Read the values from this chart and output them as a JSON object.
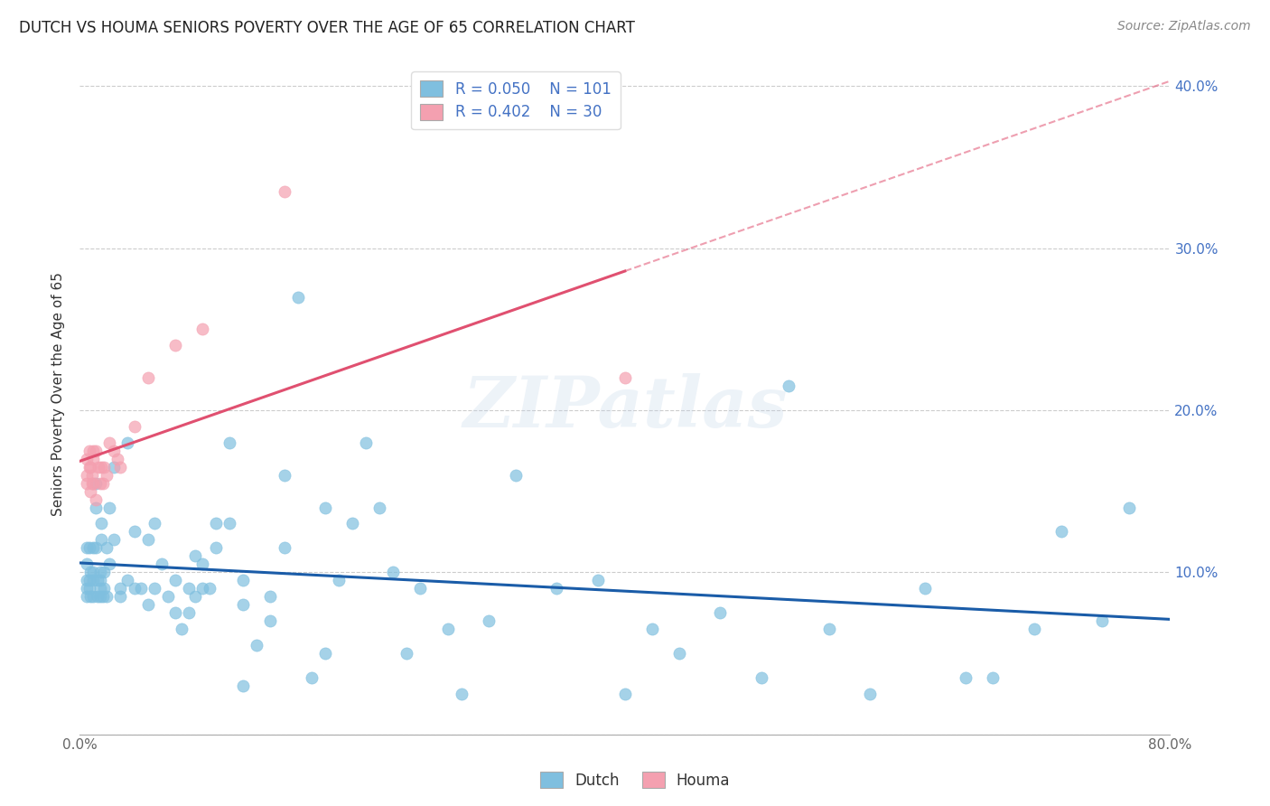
{
  "title": "DUTCH VS HOUMA SENIORS POVERTY OVER THE AGE OF 65 CORRELATION CHART",
  "source": "Source: ZipAtlas.com",
  "ylabel": "Seniors Poverty Over the Age of 65",
  "xlim": [
    0.0,
    0.8
  ],
  "ylim": [
    0.0,
    0.42
  ],
  "xticks": [
    0.0,
    0.1,
    0.2,
    0.3,
    0.4,
    0.5,
    0.6,
    0.7,
    0.8
  ],
  "xticklabels": [
    "0.0%",
    "",
    "",
    "",
    "",
    "",
    "",
    "",
    "80.0%"
  ],
  "yticks": [
    0.0,
    0.1,
    0.2,
    0.3,
    0.4
  ],
  "yticklabels_right": [
    "",
    "10.0%",
    "20.0%",
    "30.0%",
    "40.0%"
  ],
  "dutch_color": "#7fbfdf",
  "houma_color": "#f4a0b0",
  "dutch_trend_color": "#1a5ca8",
  "houma_trend_color": "#e05070",
  "legend_R_dutch": "R = 0.050",
  "legend_N_dutch": "N = 101",
  "legend_R_houma": "R = 0.402",
  "legend_N_houma": "N = 30",
  "watermark": "ZIPatlas",
  "dutch_x": [
    0.005,
    0.005,
    0.005,
    0.005,
    0.005,
    0.007,
    0.007,
    0.007,
    0.008,
    0.008,
    0.01,
    0.01,
    0.01,
    0.01,
    0.012,
    0.012,
    0.012,
    0.013,
    0.013,
    0.015,
    0.015,
    0.015,
    0.015,
    0.016,
    0.016,
    0.017,
    0.018,
    0.018,
    0.02,
    0.02,
    0.022,
    0.022,
    0.025,
    0.025,
    0.03,
    0.03,
    0.035,
    0.035,
    0.04,
    0.04,
    0.045,
    0.05,
    0.05,
    0.055,
    0.055,
    0.06,
    0.065,
    0.07,
    0.07,
    0.075,
    0.08,
    0.08,
    0.085,
    0.085,
    0.09,
    0.09,
    0.095,
    0.1,
    0.1,
    0.11,
    0.11,
    0.12,
    0.12,
    0.12,
    0.13,
    0.14,
    0.14,
    0.15,
    0.15,
    0.16,
    0.17,
    0.18,
    0.18,
    0.19,
    0.2,
    0.21,
    0.22,
    0.23,
    0.24,
    0.25,
    0.27,
    0.28,
    0.3,
    0.32,
    0.35,
    0.38,
    0.4,
    0.42,
    0.44,
    0.47,
    0.5,
    0.52,
    0.55,
    0.58,
    0.62,
    0.65,
    0.67,
    0.7,
    0.72,
    0.75,
    0.77
  ],
  "dutch_y": [
    0.115,
    0.105,
    0.095,
    0.09,
    0.085,
    0.115,
    0.095,
    0.09,
    0.1,
    0.085,
    0.115,
    0.095,
    0.1,
    0.085,
    0.155,
    0.14,
    0.115,
    0.095,
    0.085,
    0.1,
    0.09,
    0.095,
    0.085,
    0.13,
    0.12,
    0.085,
    0.1,
    0.09,
    0.115,
    0.085,
    0.14,
    0.105,
    0.165,
    0.12,
    0.085,
    0.09,
    0.18,
    0.095,
    0.09,
    0.125,
    0.09,
    0.12,
    0.08,
    0.13,
    0.09,
    0.105,
    0.085,
    0.075,
    0.095,
    0.065,
    0.09,
    0.075,
    0.11,
    0.085,
    0.09,
    0.105,
    0.09,
    0.115,
    0.13,
    0.13,
    0.18,
    0.08,
    0.03,
    0.095,
    0.055,
    0.085,
    0.07,
    0.115,
    0.16,
    0.27,
    0.035,
    0.05,
    0.14,
    0.095,
    0.13,
    0.18,
    0.14,
    0.1,
    0.05,
    0.09,
    0.065,
    0.025,
    0.07,
    0.16,
    0.09,
    0.095,
    0.025,
    0.065,
    0.05,
    0.075,
    0.035,
    0.215,
    0.065,
    0.025,
    0.09,
    0.035,
    0.035,
    0.065,
    0.125,
    0.07,
    0.14
  ],
  "houma_x": [
    0.005,
    0.005,
    0.005,
    0.007,
    0.007,
    0.008,
    0.008,
    0.009,
    0.009,
    0.01,
    0.01,
    0.01,
    0.012,
    0.012,
    0.014,
    0.015,
    0.016,
    0.017,
    0.018,
    0.02,
    0.022,
    0.025,
    0.028,
    0.03,
    0.04,
    0.05,
    0.07,
    0.09,
    0.15,
    0.4
  ],
  "houma_y": [
    0.155,
    0.16,
    0.17,
    0.165,
    0.175,
    0.15,
    0.165,
    0.16,
    0.155,
    0.17,
    0.175,
    0.155,
    0.175,
    0.145,
    0.165,
    0.155,
    0.165,
    0.155,
    0.165,
    0.16,
    0.18,
    0.175,
    0.17,
    0.165,
    0.19,
    0.22,
    0.24,
    0.25,
    0.335,
    0.22
  ]
}
